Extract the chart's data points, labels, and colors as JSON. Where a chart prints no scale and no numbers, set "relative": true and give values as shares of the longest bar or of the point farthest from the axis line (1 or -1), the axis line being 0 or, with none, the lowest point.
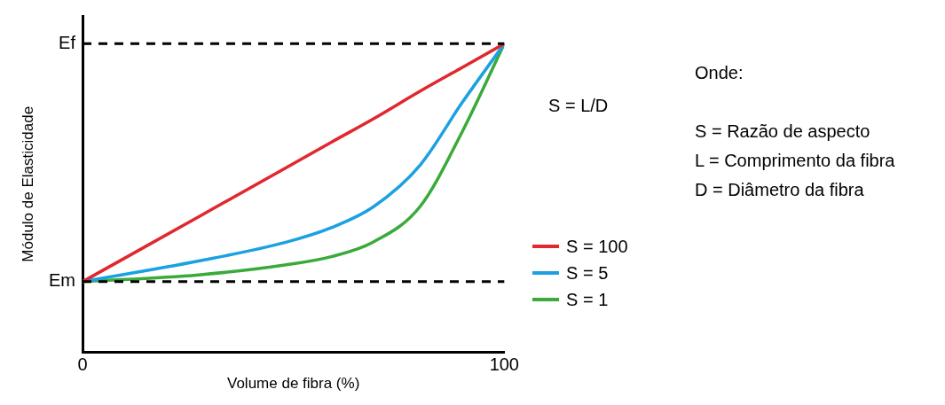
{
  "chart_data": {
    "type": "line",
    "xlabel": "Volume de fibra (%)",
    "ylabel": "Módulo de Elasticidade",
    "relative": true,
    "xlim": [
      0,
      100
    ],
    "xticks": [
      0,
      100
    ],
    "grid": false,
    "legend": "right",
    "marker": "none",
    "line_style": "solid",
    "x": [
      0,
      27.5,
      48,
      59,
      69,
      80,
      90,
      100
    ],
    "series": [
      {
        "name": "S = 100",
        "color": "#e0282e",
        "values": [
          0.229,
          0.439,
          0.596,
          0.681,
          0.757,
          0.846,
          0.923,
          1
        ]
      },
      {
        "name": "S = 5",
        "color": "#1ba1e2",
        "values": [
          0.229,
          0.296,
          0.356,
          0.404,
          0.472,
          0.606,
          0.809,
          1
        ]
      },
      {
        "name": "S = 1",
        "color": "#3aaa3a",
        "values": [
          0.229,
          0.251,
          0.283,
          0.31,
          0.358,
          0.472,
          0.714,
          1
        ]
      }
    ],
    "ref_lines": [
      {
        "axis": "y",
        "value": 1,
        "label": "Ef",
        "line_style": "dashed",
        "color": "#000000"
      },
      {
        "axis": "y",
        "value": 0.229,
        "label": "Em",
        "line_style": "dashed",
        "color": "#000000"
      }
    ],
    "annotations": [
      "S = L/D",
      "Onde:",
      "S = Razão de aspecto",
      "L = Comprimento da fibra",
      "D = Diâmetro da fibra"
    ]
  }
}
